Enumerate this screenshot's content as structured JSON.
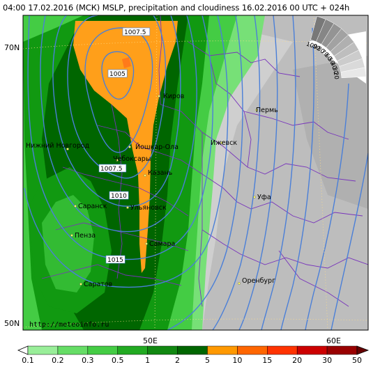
{
  "title": "04:00 17.02.2016 (МСК) MSLP, precipitation and cloudiness 16.02.2016 00 UTC + 024h",
  "url": "http://meteoinfo.ru",
  "lat_labels": [
    "70N",
    "50N"
  ],
  "lon_labels": [
    "50E",
    "60E"
  ],
  "cities": [
    {
      "name": "Пермь"
    },
    {
      "name": "Киров"
    },
    {
      "name": "Ижевск"
    },
    {
      "name": "Нижний Новгород"
    },
    {
      "name": "Йошкар-Ола"
    },
    {
      "name": "Чебоксары"
    },
    {
      "name": "Казань"
    },
    {
      "name": "Уфа"
    },
    {
      "name": "Саранск"
    },
    {
      "name": "Ульяновск"
    },
    {
      "name": "Пенза"
    },
    {
      "name": "Самара"
    },
    {
      "name": "Оренбург"
    },
    {
      "name": "Саратов"
    }
  ],
  "isobar_labels": [
    "1007.5",
    "1005",
    "1007.5",
    "1010",
    "1015"
  ],
  "cloud_legend": [
    "100",
    "90",
    "80",
    "70",
    "60",
    "50",
    "40",
    "30",
    "20"
  ],
  "precip_legend": {
    "values": [
      "0.1",
      "0.2",
      "0.3",
      "0.5",
      "1",
      "2",
      "5",
      "10",
      "15",
      "20",
      "30",
      "50"
    ],
    "colors": [
      "#99ee99",
      "#66dd66",
      "#44cc44",
      "#22aa22",
      "#118811",
      "#006600",
      "#ff9900",
      "#ff6600",
      "#ff3300",
      "#cc0000",
      "#990000",
      "#660000"
    ]
  },
  "colors": {
    "precip_light": "#66dd66",
    "precip_mid": "#119911",
    "precip_heavy": "#006600",
    "precip_orange": "#ff9f1a",
    "cloud_gray": "#c4c4c4",
    "isobar": "#4a7fd8",
    "border": "#7733bb"
  }
}
